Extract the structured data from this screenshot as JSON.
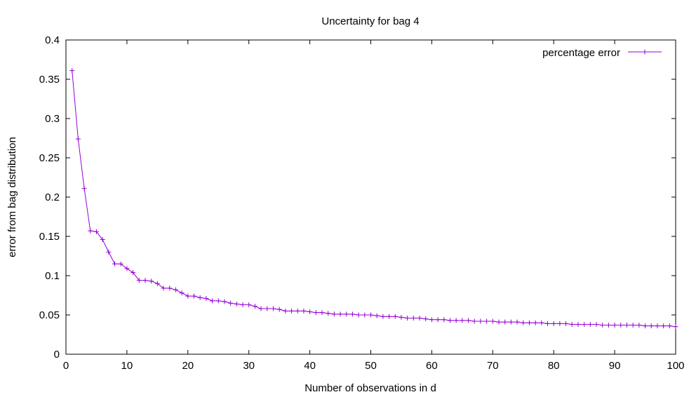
{
  "chart_data": {
    "type": "line",
    "title": "Uncertainty for bag 4",
    "xlabel": "Number of observations in d",
    "ylabel": "error from bag distribution",
    "xlim": [
      0,
      100
    ],
    "ylim": [
      0,
      0.4
    ],
    "xticks": [
      0,
      10,
      20,
      30,
      40,
      50,
      60,
      70,
      80,
      90,
      100
    ],
    "yticks": [
      0,
      0.05,
      0.1,
      0.15,
      0.2,
      0.25,
      0.3,
      0.35,
      0.4
    ],
    "xtick_labels": [
      "0",
      "10",
      "20",
      "30",
      "40",
      "50",
      "60",
      "70",
      "80",
      "90",
      "100"
    ],
    "ytick_labels": [
      "0",
      "0.05",
      "0.1",
      "0.15",
      "0.2",
      "0.25",
      "0.3",
      "0.35",
      "0.4"
    ],
    "grid": false,
    "legend_position": "top-right",
    "series": [
      {
        "name": "percentage error",
        "color": "#9400d3",
        "marker": "plus",
        "x": [
          1,
          2,
          3,
          4,
          5,
          6,
          7,
          8,
          9,
          10,
          11,
          12,
          13,
          14,
          15,
          16,
          17,
          18,
          19,
          20,
          21,
          22,
          23,
          24,
          25,
          26,
          27,
          28,
          29,
          30,
          31,
          32,
          33,
          34,
          35,
          36,
          37,
          38,
          39,
          40,
          41,
          42,
          43,
          44,
          45,
          46,
          47,
          48,
          49,
          50,
          51,
          52,
          53,
          54,
          55,
          56,
          57,
          58,
          59,
          60,
          61,
          62,
          63,
          64,
          65,
          66,
          67,
          68,
          69,
          70,
          71,
          72,
          73,
          74,
          75,
          76,
          77,
          78,
          79,
          80,
          81,
          82,
          83,
          84,
          85,
          86,
          87,
          88,
          89,
          90,
          91,
          92,
          93,
          94,
          95,
          96,
          97,
          98,
          99,
          100
        ],
        "y": [
          0.361,
          0.274,
          0.211,
          0.157,
          0.156,
          0.146,
          0.13,
          0.115,
          0.115,
          0.109,
          0.104,
          0.094,
          0.094,
          0.093,
          0.09,
          0.084,
          0.084,
          0.082,
          0.078,
          0.074,
          0.074,
          0.072,
          0.071,
          0.068,
          0.068,
          0.067,
          0.065,
          0.064,
          0.063,
          0.063,
          0.061,
          0.058,
          0.058,
          0.058,
          0.057,
          0.055,
          0.055,
          0.055,
          0.055,
          0.054,
          0.053,
          0.053,
          0.052,
          0.051,
          0.051,
          0.051,
          0.051,
          0.05,
          0.05,
          0.05,
          0.049,
          0.048,
          0.048,
          0.048,
          0.047,
          0.046,
          0.046,
          0.046,
          0.045,
          0.044,
          0.044,
          0.044,
          0.043,
          0.043,
          0.043,
          0.043,
          0.042,
          0.042,
          0.042,
          0.042,
          0.041,
          0.041,
          0.041,
          0.041,
          0.04,
          0.04,
          0.04,
          0.04,
          0.039,
          0.039,
          0.039,
          0.039,
          0.038,
          0.038,
          0.038,
          0.038,
          0.038,
          0.037,
          0.037,
          0.037,
          0.037,
          0.037,
          0.037,
          0.037,
          0.036,
          0.036,
          0.036,
          0.036,
          0.036,
          0.035
        ]
      }
    ]
  }
}
